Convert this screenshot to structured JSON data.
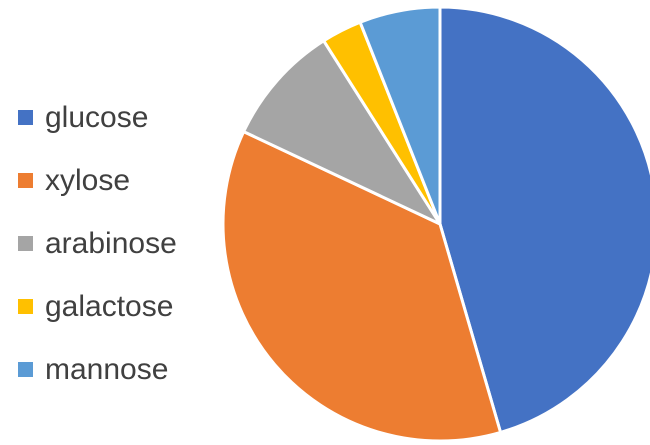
{
  "chart_data": {
    "type": "pie",
    "title": "",
    "categories": [
      "glucose",
      "xylose",
      "arabinose",
      "galactose",
      "mannose"
    ],
    "values": [
      45.5,
      36.5,
      9.0,
      3.0,
      6.0
    ],
    "colors": [
      "#4472C4",
      "#ED7D31",
      "#A5A5A5",
      "#FFC000",
      "#5B9BD5"
    ],
    "legend_position": "left",
    "start_angle_deg": 0,
    "direction": "clockwise"
  }
}
